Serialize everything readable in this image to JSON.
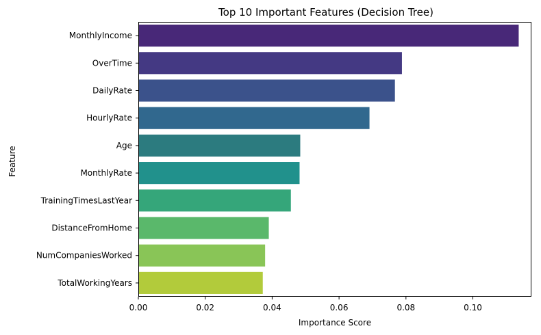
{
  "chart_data": {
    "type": "bar",
    "orientation": "horizontal",
    "title": "Top 10 Important Features (Decision Tree)",
    "xlabel": "Importance Score",
    "ylabel": "Feature",
    "xlim": [
      0,
      0.1175
    ],
    "xticks": [
      0.0,
      0.02,
      0.04,
      0.06,
      0.08,
      0.1
    ],
    "xtick_labels": [
      "0.00",
      "0.02",
      "0.04",
      "0.06",
      "0.08",
      "0.10"
    ],
    "grid": false,
    "legend": "none",
    "categories": [
      "MonthlyIncome",
      "OverTime",
      "DailyRate",
      "HourlyRate",
      "Age",
      "MonthlyRate",
      "TrainingTimesLastYear",
      "DistanceFromHome",
      "NumCompaniesWorked",
      "TotalWorkingYears"
    ],
    "values": [
      0.1137,
      0.0788,
      0.0767,
      0.0691,
      0.0484,
      0.0482,
      0.0456,
      0.039,
      0.0379,
      0.0372
    ],
    "colors": [
      "#482878",
      "#443983",
      "#3b528b",
      "#31688e",
      "#2c7b7f",
      "#21918c",
      "#35a67a",
      "#5ab86b",
      "#89c557",
      "#b2cb3b"
    ]
  }
}
